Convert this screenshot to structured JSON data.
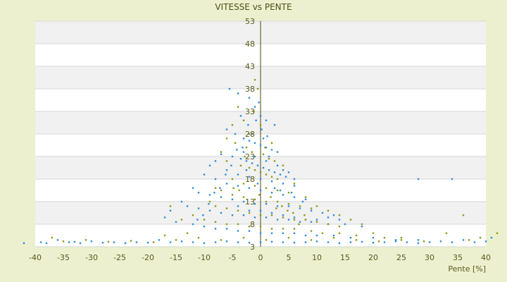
{
  "chart_data": {
    "type": "scatter",
    "title": "VITESSE vs PENTE",
    "xlabel": "Pente [%]",
    "ylabel": "",
    "xlim": [
      -40,
      40
    ],
    "ylim": [
      3,
      53
    ],
    "x_ticks": [
      "-40",
      "-35",
      "-30",
      "-25",
      "-20",
      "-15",
      "-10",
      "-5",
      "0",
      "5",
      "10",
      "15",
      "20",
      "25",
      "30",
      "35",
      "40"
    ],
    "y_ticks": [
      "3",
      "8",
      "13",
      "18",
      "23",
      "28",
      "33",
      "38",
      "43",
      "48",
      "53"
    ],
    "grid": true,
    "legend": "none",
    "series": [
      {
        "color": "#2e8fd8",
        "points": [
          [
            -5.5,
            38
          ],
          [
            -4,
            37
          ],
          [
            -3.5,
            32
          ],
          [
            -2,
            36
          ],
          [
            -1,
            34
          ],
          [
            0,
            32
          ],
          [
            1,
            31
          ],
          [
            2.5,
            30
          ],
          [
            -6,
            29
          ],
          [
            -4.5,
            28
          ],
          [
            -3,
            27
          ],
          [
            -2,
            26.5
          ],
          [
            -1,
            26
          ],
          [
            0,
            25.5
          ],
          [
            1,
            25
          ],
          [
            2,
            24.5
          ],
          [
            3,
            24
          ],
          [
            -7,
            23.5
          ],
          [
            -5,
            23
          ],
          [
            -3.5,
            22.5
          ],
          [
            -2.5,
            22
          ],
          [
            -1.5,
            21.5
          ],
          [
            -0.5,
            21
          ],
          [
            0.5,
            20.5
          ],
          [
            1.5,
            20
          ],
          [
            2.5,
            19.5
          ],
          [
            3.5,
            19
          ],
          [
            4.5,
            18.5
          ],
          [
            -8,
            22
          ],
          [
            -9,
            21
          ],
          [
            -6,
            20
          ],
          [
            -4,
            19
          ],
          [
            -2,
            18.5
          ],
          [
            0,
            18
          ],
          [
            2,
            17.5
          ],
          [
            4,
            17
          ],
          [
            6,
            16.5
          ],
          [
            -10,
            19
          ],
          [
            -8,
            18
          ],
          [
            -6,
            17
          ],
          [
            -4,
            16.5
          ],
          [
            -2,
            16
          ],
          [
            0,
            15.5
          ],
          [
            2,
            15
          ],
          [
            4,
            14.5
          ],
          [
            6,
            14
          ],
          [
            8,
            13.5
          ],
          [
            -12,
            16
          ],
          [
            -11,
            15
          ],
          [
            -9,
            14.5
          ],
          [
            -7,
            14
          ],
          [
            -5,
            13.5
          ],
          [
            -3,
            13
          ],
          [
            -1,
            12.5
          ],
          [
            1,
            12.5
          ],
          [
            3,
            12
          ],
          [
            5,
            12
          ],
          [
            7,
            11.5
          ],
          [
            9,
            11
          ],
          [
            11,
            10.5
          ],
          [
            13,
            10
          ],
          [
            -14,
            13
          ],
          [
            -13,
            12
          ],
          [
            -11,
            11.5
          ],
          [
            -9,
            11
          ],
          [
            -7,
            10.5
          ],
          [
            -5,
            10
          ],
          [
            -3,
            10
          ],
          [
            -1,
            9.5
          ],
          [
            1,
            9.5
          ],
          [
            3,
            9
          ],
          [
            5,
            9
          ],
          [
            7,
            8.5
          ],
          [
            9,
            8.5
          ],
          [
            12,
            8
          ],
          [
            15,
            8
          ],
          [
            18,
            7.5
          ],
          [
            -16,
            11
          ],
          [
            -17,
            9.5
          ],
          [
            -15,
            8.5
          ],
          [
            -12,
            8
          ],
          [
            -10,
            7.5
          ],
          [
            -8,
            7
          ],
          [
            -6,
            7
          ],
          [
            -4,
            6.5
          ],
          [
            -2,
            6.5
          ],
          [
            0,
            6
          ],
          [
            2,
            6
          ],
          [
            4,
            6
          ],
          [
            6,
            6
          ],
          [
            8,
            5.5
          ],
          [
            10,
            5.5
          ],
          [
            13,
            5.5
          ],
          [
            16,
            5
          ],
          [
            20,
            5
          ],
          [
            24,
            4.5
          ],
          [
            28,
            4.5
          ],
          [
            -39,
            4
          ],
          [
            -38,
            3.8
          ],
          [
            -36,
            4.5
          ],
          [
            -34,
            4
          ],
          [
            -32,
            3.8
          ],
          [
            -30,
            4.2
          ],
          [
            -28,
            3.9
          ],
          [
            -26,
            4
          ],
          [
            -24,
            3.8
          ],
          [
            -22,
            4
          ],
          [
            -20,
            3.9
          ],
          [
            -18,
            4.5
          ],
          [
            -16,
            4
          ],
          [
            -14,
            4.2
          ],
          [
            -12,
            4
          ],
          [
            -10,
            3.8
          ],
          [
            -8,
            4
          ],
          [
            -6,
            4.2
          ],
          [
            -4,
            4
          ],
          [
            -2,
            3.9
          ],
          [
            0,
            4
          ],
          [
            2,
            4.1
          ],
          [
            4,
            4
          ],
          [
            6,
            3.9
          ],
          [
            8,
            4
          ],
          [
            10,
            4.2
          ],
          [
            12,
            4
          ],
          [
            14,
            3.8
          ],
          [
            16,
            4
          ],
          [
            18,
            4.1
          ],
          [
            20,
            3.9
          ],
          [
            22,
            4
          ],
          [
            24,
            4.2
          ],
          [
            26,
            4
          ],
          [
            28,
            3.8
          ],
          [
            30,
            4
          ],
          [
            32,
            4.2
          ],
          [
            34,
            4
          ],
          [
            36,
            4.5
          ],
          [
            38,
            4
          ],
          [
            40,
            4.2
          ],
          [
            41,
            5
          ],
          [
            -42,
            3.8
          ],
          [
            -33,
            4.1
          ],
          [
            28,
            18
          ],
          [
            34,
            18
          ],
          [
            -1.5,
            28
          ],
          [
            0.5,
            27
          ],
          [
            1.5,
            23
          ],
          [
            -2.5,
            20
          ],
          [
            -0.5,
            17
          ],
          [
            2.5,
            16
          ],
          [
            3.5,
            15.5
          ],
          [
            5.5,
            15
          ],
          [
            7.5,
            13
          ],
          [
            -3,
            24
          ],
          [
            -1,
            23
          ],
          [
            1,
            22
          ],
          [
            3,
            21
          ],
          [
            4,
            20
          ],
          [
            5,
            19.5
          ],
          [
            6,
            18
          ],
          [
            -4,
            12
          ],
          [
            -2,
            11
          ],
          [
            0,
            11
          ],
          [
            2,
            10.5
          ],
          [
            4,
            10
          ],
          [
            6,
            9.5
          ],
          [
            8,
            9
          ],
          [
            10,
            9
          ],
          [
            12,
            9.5
          ],
          [
            14,
            9
          ],
          [
            -0.3,
            35
          ],
          [
            0.2,
            29
          ],
          [
            -0.8,
            31
          ],
          [
            1.2,
            27.5
          ],
          [
            -2.2,
            30
          ],
          [
            -3.2,
            25
          ],
          [
            -4.2,
            24.5
          ],
          [
            -5.2,
            21
          ],
          [
            -6.2,
            19
          ],
          [
            -7.2,
            16
          ],
          [
            -8.2,
            15
          ],
          [
            -9.2,
            12.5
          ],
          [
            -10.2,
            10
          ],
          [
            -11.2,
            9
          ]
        ]
      },
      {
        "color": "#8f9a1a",
        "points": [
          [
            -1,
            40
          ],
          [
            -0.5,
            38
          ],
          [
            -4,
            34
          ],
          [
            -5,
            30
          ],
          [
            -3,
            31
          ],
          [
            -6,
            27
          ],
          [
            -4.5,
            26
          ],
          [
            -2.5,
            25
          ],
          [
            -1.5,
            24
          ],
          [
            0.5,
            23.5
          ],
          [
            1.5,
            22.5
          ],
          [
            2.5,
            22
          ],
          [
            -3.5,
            21
          ],
          [
            -2,
            20.5
          ],
          [
            -1,
            20
          ],
          [
            0,
            19.5
          ],
          [
            1,
            19
          ],
          [
            2,
            18.5
          ],
          [
            3,
            18
          ],
          [
            -5,
            18
          ],
          [
            -3,
            17
          ],
          [
            -1,
            16.5
          ],
          [
            1,
            16
          ],
          [
            3,
            15.5
          ],
          [
            5,
            15
          ],
          [
            -7,
            15.5
          ],
          [
            -5,
            14.5
          ],
          [
            -3,
            14
          ],
          [
            -1,
            13.5
          ],
          [
            1,
            13
          ],
          [
            3,
            13
          ],
          [
            5,
            12.5
          ],
          [
            7,
            12
          ],
          [
            9,
            11.5
          ],
          [
            -9,
            13
          ],
          [
            -8,
            12
          ],
          [
            -6,
            11.5
          ],
          [
            -4,
            11
          ],
          [
            -2,
            10.5
          ],
          [
            0,
            10
          ],
          [
            2,
            10
          ],
          [
            4,
            9.5
          ],
          [
            6,
            9
          ],
          [
            8,
            9
          ],
          [
            10,
            8.5
          ],
          [
            12,
            8
          ],
          [
            14,
            7.5
          ],
          [
            -14,
            9
          ],
          [
            -12,
            10
          ],
          [
            -10,
            9
          ],
          [
            -8,
            8.5
          ],
          [
            -6,
            8
          ],
          [
            -4,
            8
          ],
          [
            -2,
            7.5
          ],
          [
            0,
            7.5
          ],
          [
            2,
            7
          ],
          [
            4,
            7
          ],
          [
            6,
            7
          ],
          [
            9,
            6.5
          ],
          [
            11,
            6
          ],
          [
            14,
            6
          ],
          [
            17,
            5.5
          ],
          [
            20,
            6
          ],
          [
            22,
            5
          ],
          [
            25,
            5
          ],
          [
            -37,
            5
          ],
          [
            -35,
            4.2
          ],
          [
            -31,
            4.5
          ],
          [
            -27,
            4.1
          ],
          [
            -23,
            4.3
          ],
          [
            -19,
            4
          ],
          [
            -17,
            5.5
          ],
          [
            -15,
            4.5
          ],
          [
            -11,
            5
          ],
          [
            -7,
            4.5
          ],
          [
            -3,
            5
          ],
          [
            1,
            4.5
          ],
          [
            5,
            5
          ],
          [
            9,
            4.5
          ],
          [
            13,
            5
          ],
          [
            17,
            4.5
          ],
          [
            21,
            4.2
          ],
          [
            25,
            4.5
          ],
          [
            29,
            4.2
          ],
          [
            33,
            6
          ],
          [
            37,
            4.5
          ],
          [
            39,
            5
          ],
          [
            42,
            6
          ],
          [
            36,
            10
          ],
          [
            -13,
            6
          ],
          [
            -16,
            12
          ],
          [
            -8,
            16
          ],
          [
            -6,
            22
          ],
          [
            -7,
            24
          ],
          [
            -2,
            28
          ],
          [
            0,
            30
          ],
          [
            2,
            26
          ],
          [
            4,
            21
          ],
          [
            6,
            17
          ],
          [
            8,
            14
          ],
          [
            10,
            12
          ],
          [
            12,
            11
          ],
          [
            14,
            10
          ],
          [
            16,
            9
          ],
          [
            18,
            8
          ],
          [
            -1.2,
            33
          ],
          [
            0.8,
            25
          ],
          [
            -2.8,
            23
          ],
          [
            3.8,
            12
          ],
          [
            5.8,
            10.5
          ],
          [
            7.8,
            10
          ],
          [
            -4.8,
            16
          ],
          [
            -3.8,
            15.5
          ],
          [
            -0.2,
            14.5
          ],
          [
            1.8,
            14
          ],
          [
            2.8,
            11.5
          ],
          [
            4.8,
            11
          ],
          [
            6.8,
            8
          ]
        ]
      }
    ]
  }
}
